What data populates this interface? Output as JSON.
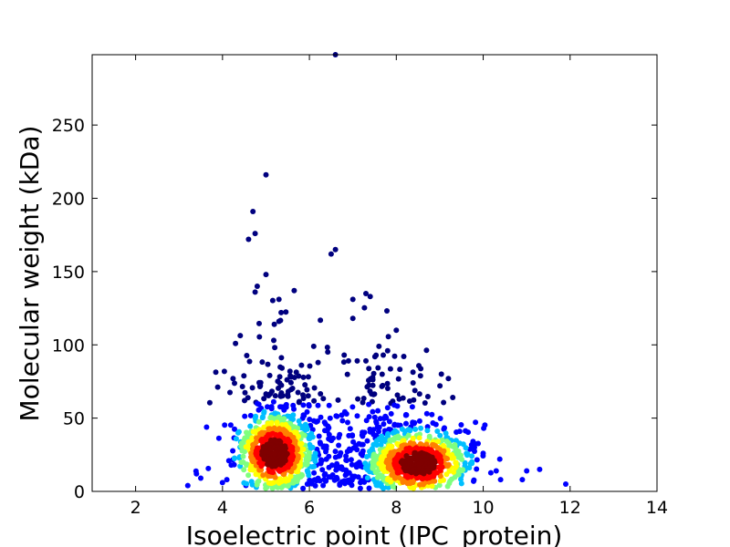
{
  "chart_data": {
    "type": "scatter",
    "title": "",
    "xlabel": "Isoelectric point (IPC_protein)",
    "ylabel": "Molecular weight (kDa)",
    "xlim": [
      1,
      14
    ],
    "ylim": [
      0,
      298
    ],
    "xticks": [
      2,
      4,
      6,
      8,
      10,
      12,
      14
    ],
    "yticks": [
      0,
      50,
      100,
      150,
      200,
      250
    ],
    "grid": false,
    "legend": "none",
    "color_encoding": "point density (jet colormap: blue = low, red = high)",
    "colors": [
      "#00007f",
      "#0000ff",
      "#00bfff",
      "#7fff7f",
      "#ffff00",
      "#ff7f00",
      "#ff0000",
      "#7f0000"
    ],
    "density_clusters": [
      {
        "center_x": 5.2,
        "center_y": 26,
        "spread_x": 0.45,
        "spread_y": 12
      },
      {
        "center_x": 8.5,
        "center_y": 19,
        "spread_x": 0.6,
        "spread_y": 10
      }
    ],
    "outliers": [
      [
        6.6,
        298
      ],
      [
        5.0,
        216
      ],
      [
        4.7,
        191
      ],
      [
        4.75,
        176
      ],
      [
        4.6,
        172
      ],
      [
        5.0,
        148
      ],
      [
        6.6,
        165
      ],
      [
        6.5,
        162
      ],
      [
        4.8,
        140
      ],
      [
        4.75,
        136
      ],
      [
        5.65,
        137
      ],
      [
        5.3,
        131
      ],
      [
        7.3,
        135
      ],
      [
        7.4,
        133
      ],
      [
        7.0,
        131
      ],
      [
        5.35,
        122
      ],
      [
        7.0,
        118
      ],
      [
        8.0,
        110
      ],
      [
        5.3,
        116
      ],
      [
        4.3,
        101
      ],
      [
        7.6,
        99
      ],
      [
        7.8,
        96
      ],
      [
        6.1,
        99
      ],
      [
        7.7,
        93
      ],
      [
        6.8,
        93
      ],
      [
        6.9,
        89
      ],
      [
        7.1,
        89
      ],
      [
        7.3,
        89
      ],
      [
        6.2,
        88
      ],
      [
        9.2,
        77
      ],
      [
        3.2,
        4
      ],
      [
        3.4,
        12
      ],
      [
        3.5,
        9
      ],
      [
        10.9,
        8
      ],
      [
        11.0,
        14
      ],
      [
        11.3,
        15
      ],
      [
        11.9,
        5
      ],
      [
        10.3,
        14
      ],
      [
        10.4,
        8
      ],
      [
        10.0,
        26
      ],
      [
        9.8,
        30
      ],
      [
        4.0,
        6
      ],
      [
        4.1,
        8
      ],
      [
        4.2,
        18
      ]
    ]
  }
}
